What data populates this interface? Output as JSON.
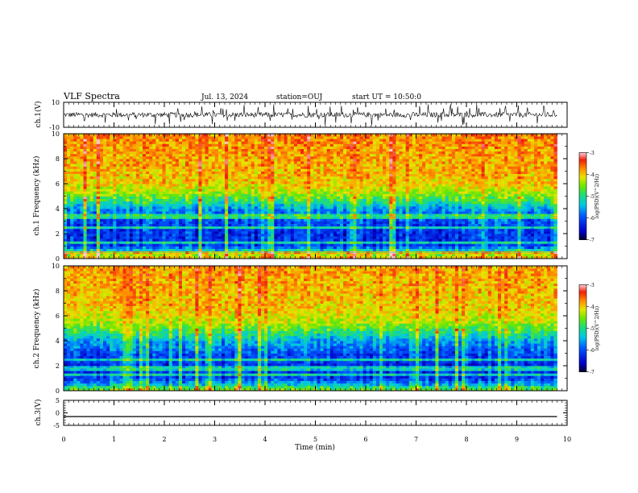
{
  "header": {
    "title": "VLF Spectra",
    "date": "Jul. 13, 2024",
    "station": "station=OUJ",
    "start": "start UT =  10:50:0"
  },
  "chart_data": [
    {
      "type": "line",
      "name": "ch1-waveform",
      "ylabel": "ch.1(V)",
      "ylim": [
        -10,
        10
      ],
      "ytick_labels": [
        "10",
        "-10"
      ],
      "xlim": [
        0,
        10
      ],
      "data_extent_min": [
        0,
        9.8
      ],
      "description_level": "noisy waveform around 0 V with amplitude about ±2 V and frequent spikes to about ±7 V",
      "baseline": 0,
      "amplitude": 2,
      "spike_amplitude": 7
    },
    {
      "type": "heatmap",
      "name": "ch1-spectrogram",
      "ylabel": "ch.1 Frequency (kHz)",
      "ylim": [
        0,
        10
      ],
      "ytick_labels": [
        "0",
        "2",
        "4",
        "6",
        "8",
        "10"
      ],
      "xlim": [
        0,
        10
      ],
      "data_extent_min": [
        0,
        9.8
      ],
      "colorbar": {
        "label": "log(PSD)(V^2/Hz)",
        "range": [
          -7,
          -3
        ],
        "tick_labels": [
          "-7",
          "-6",
          "-5",
          "-4",
          "-3"
        ]
      },
      "spectrum_profile": [
        {
          "f": 0.2,
          "v": -4.0
        },
        {
          "f": 0.5,
          "v": -4.8
        },
        {
          "f": 1.0,
          "v": -6.1
        },
        {
          "f": 2.0,
          "v": -6.2
        },
        {
          "f": 3.0,
          "v": -6.0
        },
        {
          "f": 4.0,
          "v": -5.6
        },
        {
          "f": 4.6,
          "v": -4.9
        },
        {
          "f": 5.2,
          "v": -4.4
        },
        {
          "f": 6.0,
          "v": -4.0
        },
        {
          "f": 7.0,
          "v": -3.9
        },
        {
          "f": 8.5,
          "v": -3.8
        },
        {
          "f": 10.0,
          "v": -3.7
        }
      ],
      "narrowband_lines_khz": [
        0.5,
        1.3,
        2.5,
        3.4
      ]
    },
    {
      "type": "heatmap",
      "name": "ch2-spectrogram",
      "ylabel": "ch.2 Frequency (kHz)",
      "ylim": [
        0,
        10
      ],
      "ytick_labels": [
        "0",
        "2",
        "4",
        "6",
        "8",
        "10"
      ],
      "xlim": [
        0,
        10
      ],
      "data_extent_min": [
        0,
        9.8
      ],
      "colorbar": {
        "label": "log(PSD)(V^2/Hz)",
        "range": [
          -7,
          -3
        ],
        "tick_labels": [
          "-7",
          "-6",
          "-5",
          "-4",
          "-3"
        ]
      },
      "spectrum_profile": [
        {
          "f": 0.2,
          "v": -4.6
        },
        {
          "f": 0.5,
          "v": -5.4
        },
        {
          "f": 1.0,
          "v": -6.1
        },
        {
          "f": 2.0,
          "v": -6.2
        },
        {
          "f": 3.0,
          "v": -6.0
        },
        {
          "f": 4.0,
          "v": -5.5
        },
        {
          "f": 4.8,
          "v": -4.8
        },
        {
          "f": 5.5,
          "v": -4.3
        },
        {
          "f": 6.5,
          "v": -4.0
        },
        {
          "f": 8.0,
          "v": -3.9
        },
        {
          "f": 10.0,
          "v": -3.8
        }
      ],
      "narrowband_lines_khz": [
        1.3,
        1.8,
        2.5
      ]
    },
    {
      "type": "line",
      "name": "ch3-waveform",
      "ylabel": "ch.3(V)",
      "ylim": [
        -5,
        5
      ],
      "ytick_labels": [
        "5",
        "0",
        "-5"
      ],
      "xlim": [
        0,
        10
      ],
      "data_extent_min": [
        0,
        9.8
      ],
      "description_level": "flat line near -1.5 V",
      "baseline": -1.5,
      "amplitude": 0
    }
  ],
  "xaxis": {
    "label": "Time (min)",
    "range": [
      0,
      10
    ],
    "tick_labels": [
      "0",
      "1",
      "2",
      "3",
      "4",
      "5",
      "6",
      "7",
      "8",
      "9",
      "10"
    ]
  }
}
